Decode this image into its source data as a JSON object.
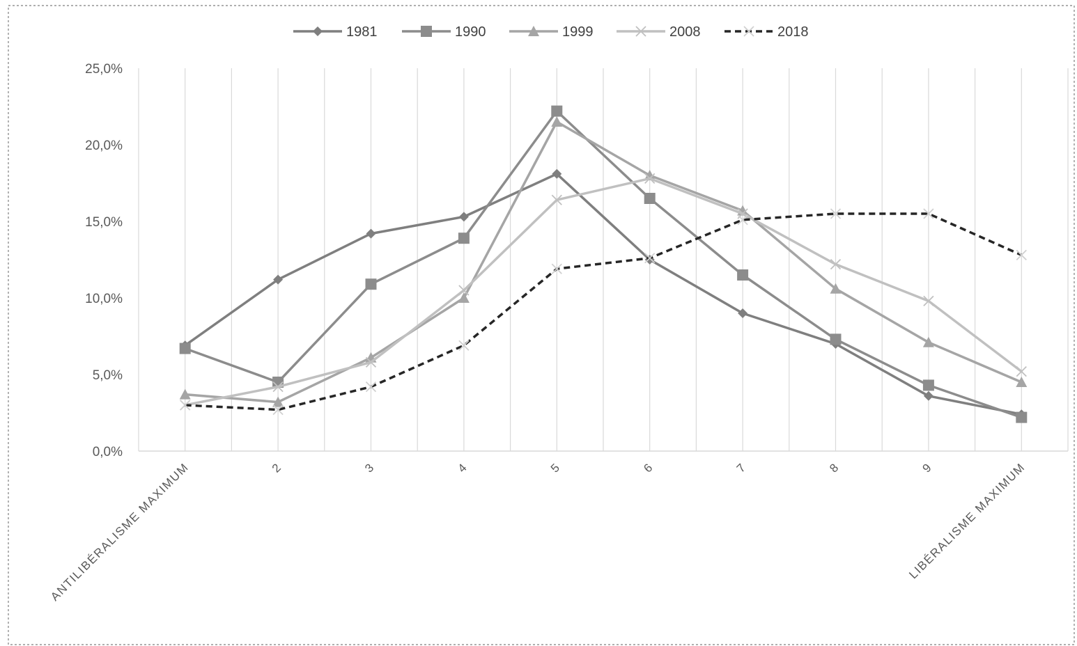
{
  "chart_data": {
    "type": "line",
    "categories": [
      "ANTILIBÉRALISME MAXIMUM",
      "2",
      "3",
      "4",
      "5",
      "6",
      "7",
      "8",
      "9",
      "LIBÉRALISME MAXIMUM"
    ],
    "series": [
      {
        "name": "1981",
        "values": [
          6.9,
          11.2,
          14.2,
          15.3,
          18.1,
          12.5,
          9.0,
          7.0,
          3.6,
          2.4
        ],
        "color": "#7f7f7f",
        "marker": "diamond",
        "dash": false
      },
      {
        "name": "1990",
        "values": [
          6.7,
          4.5,
          10.9,
          13.9,
          22.2,
          16.5,
          11.5,
          7.3,
          4.3,
          2.2
        ],
        "color": "#8c8c8c",
        "marker": "square",
        "dash": false
      },
      {
        "name": "1999",
        "values": [
          3.7,
          3.2,
          6.1,
          10.0,
          21.5,
          18.0,
          15.7,
          10.6,
          7.1,
          4.5
        ],
        "color": "#a5a5a5",
        "marker": "triangle",
        "dash": false
      },
      {
        "name": "2008",
        "values": [
          3.0,
          4.2,
          5.8,
          10.5,
          16.4,
          17.8,
          15.5,
          12.2,
          9.8,
          5.2
        ],
        "color": "#c0c0c0",
        "marker": "x",
        "dash": false
      },
      {
        "name": "2018",
        "values": [
          3.0,
          2.7,
          4.2,
          6.9,
          11.9,
          12.6,
          15.1,
          15.5,
          15.5,
          12.8
        ],
        "color": "#262626",
        "marker": "x-light",
        "dash": true
      }
    ],
    "yTickLabels": [
      "0,0%",
      "5,0%",
      "10,0%",
      "15,0%",
      "20,0%",
      "25,0%"
    ],
    "ylim": [
      0,
      25
    ],
    "yStep": 5,
    "grid": "vertical",
    "legend": "top"
  }
}
